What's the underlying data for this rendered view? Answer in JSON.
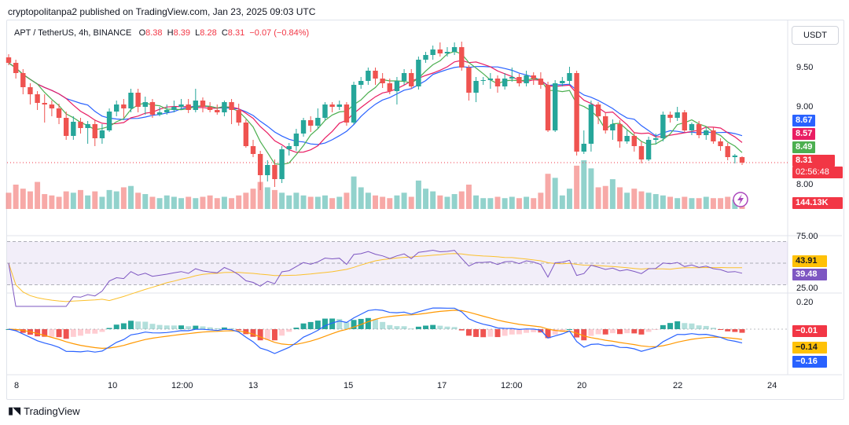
{
  "header": {
    "published": "cryptopolitanpa2 published on TradingView.com, Jan 23, 2025 09:03 UTC"
  },
  "legend": {
    "symbol": "APT / TetherUS, 4h, BINANCE",
    "o_label": "O",
    "o": "8.38",
    "h_label": "H",
    "h": "8.39",
    "l_label": "L",
    "l": "8.28",
    "c_label": "C",
    "c": "8.31",
    "change": "−0.07 (−0.84%)"
  },
  "currency_button": "USDT",
  "price_axis": [
    "9.50",
    "9.00",
    "8.00"
  ],
  "price_tags": {
    "ma_blue": "8.67",
    "ma_red": "8.57",
    "ma_green": "8.49",
    "last": "8.31",
    "countdown": "02:56:48",
    "volume": "144.13K"
  },
  "rsi_axis": [
    "75.00",
    "25.00"
  ],
  "rsi_tags": {
    "ma": "43.91",
    "rsi": "39.48"
  },
  "macd_axis": [
    "0.20"
  ],
  "macd_tags": {
    "hist": "−0.01",
    "signal": "−0.14",
    "macd": "−0.16"
  },
  "time_axis": [
    "8",
    "10",
    "12:00",
    "13",
    "15",
    "17",
    "12:00",
    "20",
    "22",
    "24"
  ],
  "footer": {
    "brand": "TradingView"
  },
  "colors": {
    "up": "#26a69a",
    "down": "#ef5350",
    "ma_blue": "#2962ff",
    "ma_red": "#e91e63",
    "ma_green": "#4caf50",
    "rsi": "#7e57c2",
    "signal": "#ff9800"
  },
  "chart_data": {
    "type": "candlestick",
    "timeframe": "4h",
    "y_range": [
      7.88,
      9.98
    ],
    "candles": [
      [
        9.65,
        9.58,
        9.69,
        9.55
      ],
      [
        9.58,
        9.45,
        9.62,
        9.38
      ],
      [
        9.45,
        9.27,
        9.5,
        9.18
      ],
      [
        9.27,
        9.18,
        9.32,
        9.05
      ],
      [
        9.18,
        9.07,
        9.22,
        8.98
      ],
      [
        9.07,
        9.05,
        9.18,
        8.82
      ],
      [
        9.05,
        9.0,
        9.1,
        8.9
      ],
      [
        9.0,
        8.88,
        9.06,
        8.8
      ],
      [
        8.88,
        8.65,
        8.96,
        8.6
      ],
      [
        8.65,
        8.83,
        8.9,
        8.6
      ],
      [
        8.83,
        8.75,
        8.88,
        8.68
      ],
      [
        8.75,
        8.8,
        8.84,
        8.55
      ],
      [
        8.8,
        8.62,
        8.86,
        8.52
      ],
      [
        8.62,
        8.72,
        8.8,
        8.55
      ],
      [
        8.72,
        8.96,
        9.0,
        8.7
      ],
      [
        8.96,
        9.05,
        9.1,
        8.9
      ],
      [
        9.05,
        9.0,
        9.12,
        8.88
      ],
      [
        9.0,
        9.2,
        9.25,
        8.95
      ],
      [
        9.2,
        9.02,
        9.25,
        8.95
      ],
      [
        9.02,
        9.08,
        9.15,
        8.92
      ],
      [
        9.08,
        8.92,
        9.12,
        8.88
      ],
      [
        8.92,
        8.95,
        9.02,
        8.9
      ],
      [
        8.95,
        8.98,
        9.05,
        8.92
      ],
      [
        8.98,
        9.02,
        9.1,
        8.95
      ],
      [
        9.02,
        9.05,
        9.12,
        8.98
      ],
      [
        9.05,
        8.98,
        9.12,
        8.94
      ],
      [
        8.98,
        9.1,
        9.25,
        8.95
      ],
      [
        9.1,
        9.02,
        9.14,
        8.95
      ],
      [
        9.02,
        8.98,
        9.08,
        8.95
      ],
      [
        8.98,
        8.95,
        9.05,
        8.92
      ],
      [
        8.95,
        9.08,
        9.1,
        8.9
      ],
      [
        9.08,
        8.98,
        9.12,
        8.8
      ],
      [
        8.98,
        8.82,
        9.06,
        8.78
      ],
      [
        8.82,
        8.52,
        8.86,
        8.5
      ],
      [
        8.52,
        8.42,
        8.6,
        8.38
      ],
      [
        8.42,
        8.15,
        8.46,
        7.96
      ],
      [
        8.15,
        8.28,
        8.34,
        8.07
      ],
      [
        8.28,
        8.1,
        8.35,
        8.0
      ],
      [
        8.1,
        8.48,
        8.52,
        8.05
      ],
      [
        8.48,
        8.52,
        8.56,
        8.4
      ],
      [
        8.52,
        8.68,
        8.74,
        8.46
      ],
      [
        8.68,
        8.85,
        8.88,
        8.64
      ],
      [
        8.85,
        8.78,
        8.9,
        8.7
      ],
      [
        8.78,
        8.88,
        9.0,
        8.74
      ],
      [
        8.88,
        9.05,
        9.08,
        8.85
      ],
      [
        9.05,
        9.02,
        9.08,
        8.95
      ],
      [
        9.02,
        9.05,
        9.1,
        8.98
      ],
      [
        9.05,
        8.82,
        9.08,
        8.78
      ],
      [
        8.82,
        9.3,
        9.34,
        8.8
      ],
      [
        9.3,
        9.35,
        9.4,
        9.25
      ],
      [
        9.35,
        9.48,
        9.52,
        9.3
      ],
      [
        9.48,
        9.38,
        9.52,
        9.3
      ],
      [
        9.38,
        9.32,
        9.45,
        9.26
      ],
      [
        9.32,
        9.22,
        9.38,
        9.18
      ],
      [
        9.22,
        9.35,
        9.4,
        9.05
      ],
      [
        9.35,
        9.45,
        9.5,
        9.3
      ],
      [
        9.45,
        9.28,
        9.5,
        9.25
      ],
      [
        9.28,
        9.62,
        9.66,
        9.24
      ],
      [
        9.62,
        9.68,
        9.72,
        9.58
      ],
      [
        9.68,
        9.75,
        9.8,
        9.62
      ],
      [
        9.75,
        9.7,
        9.84,
        9.66
      ],
      [
        9.7,
        9.72,
        9.78,
        9.66
      ],
      [
        9.72,
        9.78,
        9.84,
        9.68
      ],
      [
        9.78,
        9.52,
        9.85,
        9.48
      ],
      [
        9.52,
        9.2,
        9.55,
        9.1
      ],
      [
        9.2,
        9.35,
        9.4,
        9.08
      ],
      [
        9.35,
        9.36,
        9.4,
        9.3
      ],
      [
        9.36,
        9.38,
        9.45,
        9.25
      ],
      [
        9.38,
        9.28,
        9.42,
        9.2
      ],
      [
        9.28,
        9.38,
        9.45,
        9.24
      ],
      [
        9.38,
        9.4,
        9.52,
        9.34
      ],
      [
        9.4,
        9.32,
        9.44,
        9.28
      ],
      [
        9.32,
        9.42,
        9.48,
        9.28
      ],
      [
        9.42,
        9.38,
        9.46,
        9.3
      ],
      [
        9.38,
        9.3,
        9.46,
        9.25
      ],
      [
        9.3,
        8.72,
        9.34,
        8.7
      ],
      [
        8.72,
        9.32,
        9.36,
        8.7
      ],
      [
        9.32,
        9.35,
        9.4,
        9.28
      ],
      [
        9.35,
        9.45,
        9.53,
        9.3
      ],
      [
        9.45,
        8.45,
        9.48,
        8.4
      ],
      [
        8.45,
        8.55,
        8.72,
        8.42
      ],
      [
        8.55,
        9.05,
        9.1,
        8.45
      ],
      [
        9.05,
        8.9,
        9.08,
        8.8
      ],
      [
        8.9,
        8.72,
        8.95,
        8.68
      ],
      [
        8.72,
        8.8,
        8.86,
        8.6
      ],
      [
        8.8,
        8.58,
        8.85,
        8.5
      ],
      [
        8.58,
        8.65,
        8.72,
        8.55
      ],
      [
        8.65,
        8.52,
        8.7,
        8.45
      ],
      [
        8.52,
        8.35,
        8.58,
        8.3
      ],
      [
        8.35,
        8.6,
        8.64,
        8.33
      ],
      [
        8.6,
        8.62,
        8.68,
        8.54
      ],
      [
        8.62,
        8.92,
        8.96,
        8.58
      ],
      [
        8.92,
        8.88,
        8.96,
        8.82
      ],
      [
        8.88,
        8.95,
        9.02,
        8.84
      ],
      [
        8.95,
        8.72,
        8.98,
        8.7
      ],
      [
        8.72,
        8.8,
        8.82,
        8.66
      ],
      [
        8.8,
        8.66,
        8.84,
        8.62
      ],
      [
        8.66,
        8.72,
        8.76,
        8.6
      ],
      [
        8.72,
        8.58,
        8.76,
        8.55
      ],
      [
        8.58,
        8.52,
        8.62,
        8.46
      ],
      [
        8.52,
        8.38,
        8.56,
        8.34
      ],
      [
        8.38,
        8.4,
        8.42,
        8.3
      ],
      [
        8.38,
        8.31,
        8.39,
        8.28
      ]
    ],
    "volume": [
      1.2,
      1.8,
      1.5,
      1.3,
      2.0,
      1.1,
      1.0,
      0.9,
      1.3,
      1.2,
      1.4,
      1.0,
      1.3,
      0.9,
      1.4,
      1.3,
      1.6,
      1.7,
      1.2,
      1.1,
      0.9,
      0.8,
      1.0,
      0.9,
      0.8,
      0.9,
      0.8,
      0.9,
      1.0,
      0.8,
      0.9,
      0.8,
      1.0,
      1.2,
      1.5,
      2.0,
      1.6,
      1.4,
      1.2,
      1.0,
      1.2,
      1.0,
      0.9,
      0.9,
      1.0,
      0.8,
      0.9,
      1.2,
      2.4,
      1.6,
      1.2,
      1.0,
      0.9,
      0.8,
      1.0,
      1.2,
      0.9,
      2.1,
      1.5,
      1.3,
      1.0,
      0.9,
      1.1,
      1.3,
      1.8,
      1.0,
      0.8,
      0.8,
      0.9,
      0.8,
      0.9,
      0.8,
      0.9,
      0.8,
      1.2,
      2.6,
      2.3,
      1.0,
      1.5,
      3.2,
      3.6,
      3.0,
      1.6,
      1.7,
      2.2,
      1.6,
      1.2,
      1.5,
      1.3,
      1.2,
      1.1,
      1.0,
      0.9,
      0.8,
      0.9,
      0.8,
      0.8,
      0.9,
      0.8,
      0.8,
      0.9,
      0.7,
      0.6
    ],
    "rsi_range": [
      0,
      100
    ],
    "rsi_levels": [
      75,
      50,
      25
    ],
    "macd_range": [
      -0.36,
      0.24
    ]
  }
}
